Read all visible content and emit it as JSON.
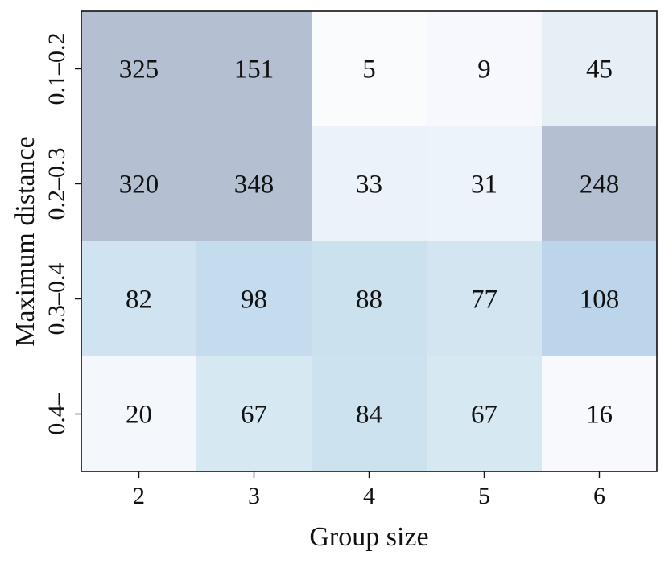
{
  "chart_data": {
    "type": "heatmap",
    "title": "",
    "xlabel": "Group size",
    "ylabel": "Maximum distance",
    "x_categories": [
      "2",
      "3",
      "4",
      "5",
      "6"
    ],
    "y_categories": [
      "0.1–0.2",
      "0.2–0.3",
      "0.3–0.4",
      "0.4–"
    ],
    "values": [
      [
        325,
        151,
        5,
        9,
        45
      ],
      [
        320,
        348,
        33,
        31,
        248
      ],
      [
        82,
        98,
        88,
        77,
        108
      ],
      [
        20,
        67,
        84,
        67,
        16
      ]
    ],
    "cell_colors": [
      [
        "#b4c0d2",
        "#b4c0d2",
        "#f9fbfd",
        "#f6f8fd",
        "#e7eff6"
      ],
      [
        "#b4c0d2",
        "#b4c0d2",
        "#ecf2f9",
        "#edf3fa",
        "#b4c0d2"
      ],
      [
        "#cfe3f0",
        "#c5dbee",
        "#cbe1ee",
        "#d2e5f1",
        "#bdd5eb"
      ],
      [
        "#f4f7fb",
        "#d6e8f1",
        "#cce2ef",
        "#d6e8f1",
        "#f7f9fd"
      ]
    ],
    "colorbar": false,
    "grid": false
  }
}
